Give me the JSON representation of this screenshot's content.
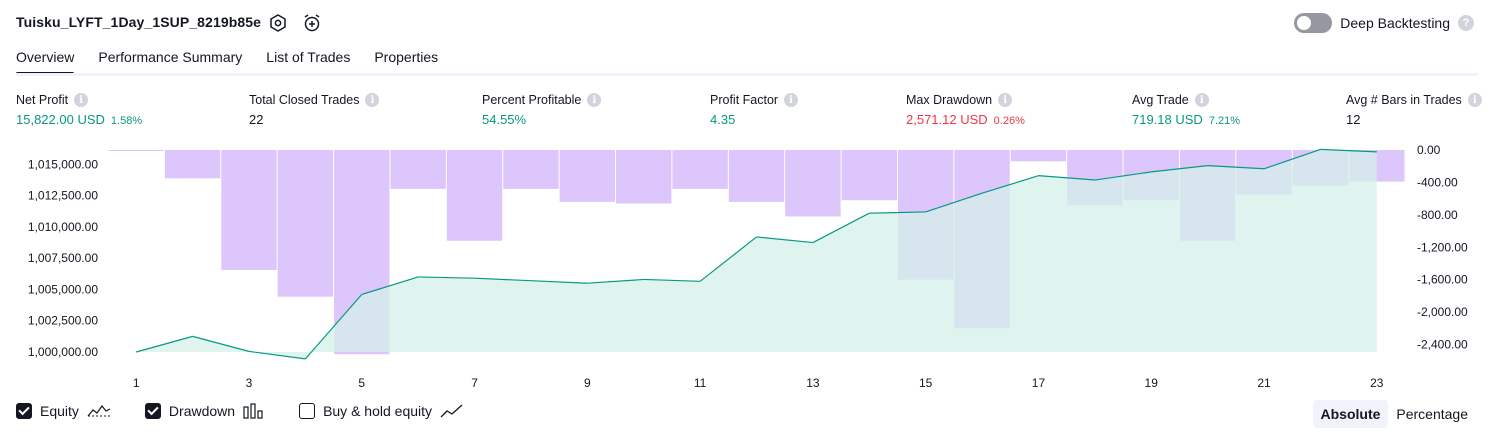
{
  "header": {
    "title": "Tuisku_LYFT_1Day_1SUP_8219b85e",
    "icons": [
      "settings-hex-icon",
      "alarm-add-icon"
    ],
    "deep_backtesting_label": "Deep Backtesting",
    "deep_backtesting_on": false,
    "help_glyph": "?"
  },
  "tabs": [
    {
      "label": "Overview",
      "active": true
    },
    {
      "label": "Performance Summary",
      "active": false
    },
    {
      "label": "List of Trades",
      "active": false
    },
    {
      "label": "Properties",
      "active": false
    }
  ],
  "metrics": [
    {
      "label": "Net Profit",
      "value": "15,822.00 USD",
      "pct": "1.58%",
      "color": "#089981"
    },
    {
      "label": "Total Closed Trades",
      "value": "22",
      "pct": "",
      "color": "#131722"
    },
    {
      "label": "Percent Profitable",
      "value": "54.55%",
      "pct": "",
      "color": "#089981"
    },
    {
      "label": "Profit Factor",
      "value": "4.35",
      "pct": "",
      "color": "#089981"
    },
    {
      "label": "Max Drawdown",
      "value": "2,571.12 USD",
      "pct": "0.26%",
      "color": "#f23645"
    },
    {
      "label": "Avg Trade",
      "value": "719.18 USD",
      "pct": "7.21%",
      "color": "#089981"
    },
    {
      "label": "Avg # Bars in Trades",
      "value": "12",
      "pct": "",
      "color": "#131722"
    }
  ],
  "info_glyph": "i",
  "chart_data": {
    "type": "line",
    "x": [
      1,
      2,
      3,
      4,
      5,
      6,
      7,
      8,
      9,
      10,
      11,
      12,
      13,
      14,
      15,
      16,
      17,
      18,
      19,
      20,
      21,
      22,
      23
    ],
    "x_tick_labels": [
      "1",
      "3",
      "5",
      "7",
      "9",
      "11",
      "13",
      "15",
      "17",
      "19",
      "21",
      "23"
    ],
    "left_axis": {
      "ylim": [
        999000,
        1016200
      ],
      "tick_labels": [
        "1,015,000.00",
        "1,012,500.00",
        "1,010,000.00",
        "1,007,500.00",
        "1,005,000.00",
        "1,002,500.00",
        "1,000,000.00"
      ],
      "tick_values": [
        1015000,
        1012500,
        1010000,
        1007500,
        1005000,
        1002500,
        1000000
      ]
    },
    "right_axis": {
      "ylim": [
        -2500,
        0
      ],
      "tick_labels": [
        "0.00",
        "-400.00",
        "-800.00",
        "-1,200.00",
        "-1,600.00",
        "-2,000.00",
        "-2,400.00"
      ],
      "tick_values": [
        0,
        -400,
        -800,
        -1200,
        -1600,
        -2000,
        -2400
      ]
    },
    "series": [
      {
        "name": "Equity",
        "axis": "left",
        "color": "#089981",
        "negative_color": "#f23645",
        "fill": "#d6f0ea",
        "values": [
          1000000,
          1001250,
          1000050,
          999450,
          1004600,
          1006000,
          1005900,
          1005700,
          1005500,
          1005800,
          1005650,
          1009200,
          1008750,
          1011100,
          1011200,
          1012700,
          1014100,
          1013750,
          1014400,
          1014900,
          1014650,
          1016200,
          1016000
        ]
      },
      {
        "name": "Drawdown",
        "axis": "right",
        "color": "#c9a7f9",
        "opacity": 0.65,
        "values": [
          0,
          -350,
          -1480,
          -1810,
          -2520,
          -480,
          -1120,
          -480,
          -640,
          -660,
          -480,
          -640,
          -820,
          -620,
          -1600,
          -2200,
          -140,
          -680,
          -620,
          -1120,
          -550,
          -440,
          -390
        ]
      }
    ],
    "grid": false
  },
  "legend": {
    "items": [
      {
        "label": "Equity",
        "checked": true,
        "icon": "equity-line-icon"
      },
      {
        "label": "Drawdown",
        "checked": true,
        "icon": "drawdown-bars-icon"
      },
      {
        "label": "Buy & hold equity",
        "checked": false,
        "icon": "buyhold-line-icon"
      }
    ]
  },
  "view_modes": [
    {
      "label": "Absolute",
      "active": true
    },
    {
      "label": "Percentage",
      "active": false
    }
  ]
}
